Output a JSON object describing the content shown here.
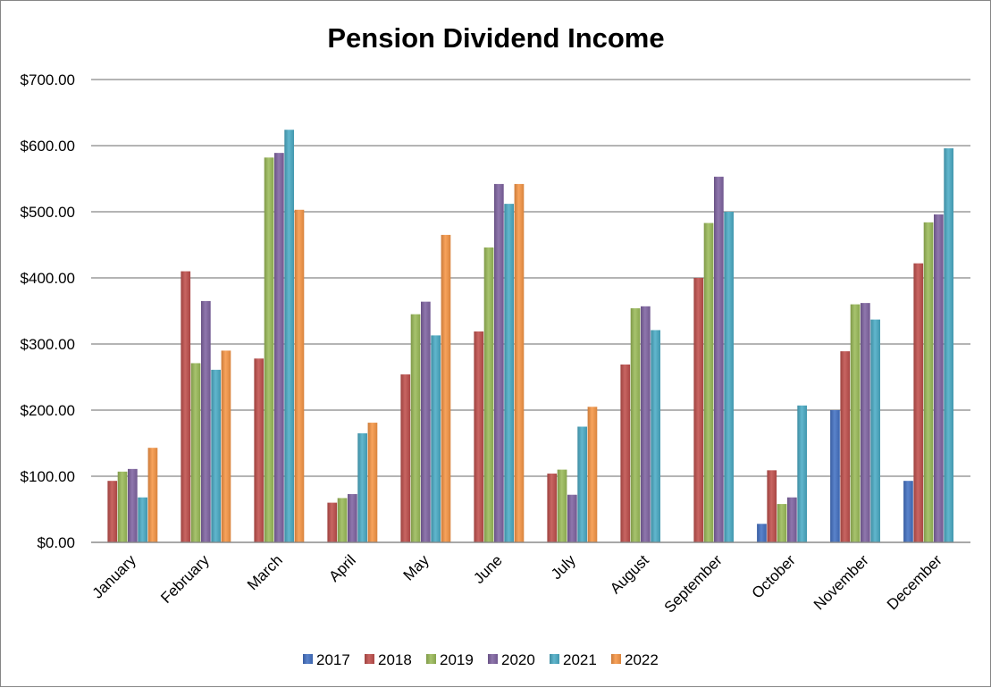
{
  "chart_data": {
    "type": "bar",
    "title": "Pension Dividend Income",
    "xlabel": "",
    "ylabel": "",
    "ylim": [
      0,
      700
    ],
    "yticks": [
      0,
      100,
      200,
      300,
      400,
      500,
      600,
      700
    ],
    "ytick_labels": [
      "$0.00",
      "$100.00",
      "$200.00",
      "$300.00",
      "$400.00",
      "$500.00",
      "$600.00",
      "$700.00"
    ],
    "grid": true,
    "legend_position": "bottom",
    "categories": [
      "January",
      "February",
      "March",
      "April",
      "May",
      "June",
      "July",
      "August",
      "September",
      "October",
      "November",
      "December"
    ],
    "series": [
      {
        "name": "2017",
        "color": "#4472C4",
        "values": [
          null,
          null,
          null,
          null,
          null,
          null,
          null,
          null,
          null,
          28,
          200,
          93
        ]
      },
      {
        "name": "2018",
        "color": "#C0504D",
        "values": [
          93,
          410,
          278,
          60,
          254,
          319,
          104,
          269,
          400,
          109,
          289,
          422
        ]
      },
      {
        "name": "2019",
        "color": "#9BBB59",
        "values": [
          107,
          271,
          582,
          67,
          345,
          446,
          110,
          354,
          483,
          58,
          360,
          484
        ]
      },
      {
        "name": "2020",
        "color": "#8064A2",
        "values": [
          111,
          365,
          589,
          73,
          364,
          542,
          72,
          357,
          553,
          68,
          362,
          496
        ]
      },
      {
        "name": "2021",
        "color": "#4BACC6",
        "values": [
          68,
          261,
          624,
          165,
          313,
          512,
          175,
          321,
          500,
          207,
          337,
          596
        ]
      },
      {
        "name": "2022",
        "color": "#F79646",
        "values": [
          143,
          290,
          503,
          181,
          465,
          542,
          205,
          null,
          null,
          null,
          null,
          null
        ]
      }
    ]
  }
}
